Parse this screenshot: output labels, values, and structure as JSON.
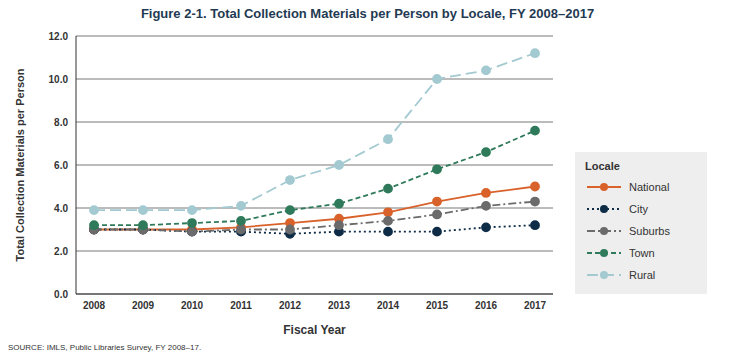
{
  "chart_data": {
    "type": "line",
    "title": "Figure 2-1. Total Collection Materials per Person by Locale, FY 2008–2017",
    "x_label": "Fiscal Year",
    "y_label": "Total Collection Materials per Person",
    "source": "SOURCE: IMLS, Public Libraries Survey, FY 2008–17.",
    "legend_title": "Locale",
    "categories": [
      "2008",
      "2009",
      "2010",
      "2011",
      "2012",
      "2013",
      "2014",
      "2015",
      "2016",
      "2017"
    ],
    "series": [
      {
        "name": "National",
        "color": "#d9622b",
        "line_style": "solid",
        "marker": "circle",
        "values": [
          3.0,
          3.0,
          3.0,
          3.1,
          3.3,
          3.5,
          3.8,
          4.3,
          4.7,
          5.0
        ]
      },
      {
        "name": "City",
        "color": "#0f2c47",
        "line_style": "dotted",
        "marker": "circle",
        "values": [
          3.0,
          3.0,
          2.9,
          2.9,
          2.8,
          2.9,
          2.9,
          2.9,
          3.1,
          3.2
        ]
      },
      {
        "name": "Suburbs",
        "color": "#6b6b6b",
        "line_style": "dashdot",
        "marker": "circle",
        "values": [
          3.0,
          3.0,
          2.9,
          3.0,
          3.0,
          3.2,
          3.4,
          3.7,
          4.1,
          4.3
        ]
      },
      {
        "name": "Town",
        "color": "#2f7a5a",
        "line_style": "dashed",
        "marker": "circle",
        "values": [
          3.2,
          3.2,
          3.3,
          3.4,
          3.9,
          4.2,
          4.9,
          5.8,
          6.6,
          7.6
        ]
      },
      {
        "name": "Rural",
        "color": "#a3c9d1",
        "line_style": "longdash",
        "marker": "circle",
        "values": [
          3.9,
          3.9,
          3.9,
          4.1,
          5.3,
          6.0,
          7.2,
          10.0,
          10.4,
          11.2
        ]
      }
    ],
    "ylim": [
      0,
      12
    ],
    "yticks": [
      {
        "value": 0,
        "label": "0.0"
      },
      {
        "value": 2,
        "label": "2.0"
      },
      {
        "value": 4,
        "label": "4.0"
      },
      {
        "value": 6,
        "label": "6.0"
      },
      {
        "value": 8,
        "label": "8.0"
      },
      {
        "value": 10,
        "label": "10.0"
      },
      {
        "value": 12,
        "label": "12.0"
      }
    ],
    "grid": true,
    "legend": "right"
  }
}
